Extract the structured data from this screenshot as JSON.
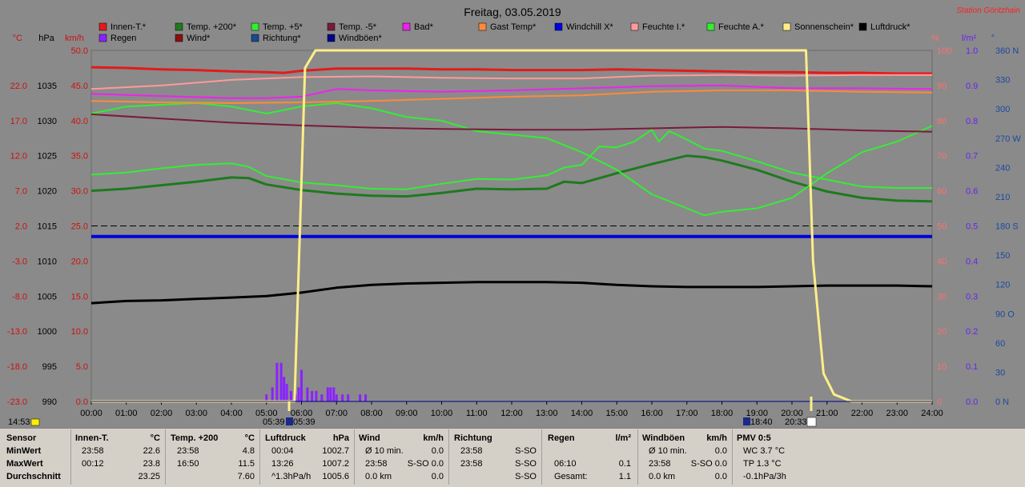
{
  "header": {
    "title": "Freitag, 03.05.2019",
    "station": "Station Göritzhain"
  },
  "legend": [
    {
      "label": "Innen-T.*",
      "color": "#e31a1a"
    },
    {
      "label": "Temp. +200*",
      "color": "#1e7a1e"
    },
    {
      "label": "Temp. +5*",
      "color": "#33ee33"
    },
    {
      "label": "Temp. -5*",
      "color": "#7a1a3a"
    },
    {
      "label": "Bad*",
      "color": "#ee22ee"
    },
    {
      "label": "Gast Temp*",
      "color": "#ff8a3a"
    },
    {
      "label": "Windchill X*",
      "color": "#0000dd"
    },
    {
      "label": "Feuchte I.*",
      "color": "#ff9a9a"
    },
    {
      "label": "Feuchte A.*",
      "color": "#33ee33"
    },
    {
      "label": "Sonnenschein*",
      "color": "#ffee88"
    },
    {
      "label": "Luftdruck*",
      "color": "#000000"
    },
    {
      "label": "Regen",
      "color": "#8a22ff"
    },
    {
      "label": "Wind*",
      "color": "#8a1010"
    },
    {
      "label": "Richtung*",
      "color": "#1a4a8a"
    },
    {
      "label": "Windböen*",
      "color": "#000088"
    }
  ],
  "axes": {
    "unit_c": "°C",
    "unit_hpa": "hPa",
    "unit_kmh": "km/h",
    "unit_pct": "%",
    "unit_lm2": "l/m²",
    "unit_deg": "°",
    "c_ticks": [
      "22.0",
      "17.0",
      "12.0",
      "7.0",
      "2.0",
      "-3.0",
      "-8.0",
      "-13.0",
      "-18.0",
      "-23.0"
    ],
    "hpa_ticks": [
      "1035",
      "1030",
      "1025",
      "1020",
      "1015",
      "1010",
      "1005",
      "1000",
      "995",
      "990"
    ],
    "kmh_ticks": [
      "50.0",
      "45.0",
      "40.0",
      "35.0",
      "30.0",
      "25.0",
      "20.0",
      "15.0",
      "10.0",
      "5.0",
      "0.0"
    ],
    "pct_ticks": [
      "100",
      "90",
      "80",
      "70",
      "60",
      "50",
      "40",
      "30",
      "20",
      "10",
      "0"
    ],
    "lm2_ticks": [
      "1.0",
      "0.9",
      "0.8",
      "0.7",
      "0.6",
      "0.5",
      "0.4",
      "0.3",
      "0.2",
      "0.1",
      "0.0"
    ],
    "deg_ticks": [
      "360 N",
      "330",
      "300",
      "270 W",
      "240",
      "210",
      "180 S",
      "150",
      "120",
      "90 O",
      "60",
      "30",
      "0 N"
    ],
    "x_ticks": [
      "00:00",
      "01:00",
      "02:00",
      "03:00",
      "04:00",
      "05:00",
      "06:00",
      "07:00",
      "08:00",
      "09:00",
      "10:00",
      "11:00",
      "12:00",
      "13:00",
      "14:00",
      "15:00",
      "16:00",
      "17:00",
      "18:00",
      "19:00",
      "20:00",
      "21:00",
      "22:00",
      "23:00",
      "24:00"
    ]
  },
  "markers": {
    "time_now": "14:53",
    "sunrise": "05:39",
    "sunrise2": "05:39",
    "moonrise": "18:40",
    "sunset": "20:33"
  },
  "chart_data": {
    "type": "line",
    "title": "Freitag, 03.05.2019",
    "x_unit": "hour",
    "xlim": [
      0,
      24
    ],
    "ylim_kmh": [
      0,
      50
    ],
    "series": [
      {
        "name": "Innen-T.*",
        "color": "#e31a1a",
        "width": 3,
        "x": [
          0,
          1,
          2,
          3,
          4,
          5,
          5.5,
          6,
          7,
          8,
          9,
          10,
          11,
          12,
          13,
          14,
          15,
          16,
          17,
          18,
          19,
          20,
          21,
          22,
          23,
          24
        ],
        "y": [
          47.6,
          47.5,
          47.3,
          47.2,
          47.0,
          46.9,
          46.8,
          47.1,
          47.4,
          47.4,
          47.4,
          47.3,
          47.3,
          47.2,
          47.2,
          47.2,
          47.3,
          47.2,
          47.1,
          47.0,
          46.9,
          46.9,
          46.8,
          46.8,
          46.7,
          46.7
        ]
      },
      {
        "name": "Temp. +200*",
        "color": "#1e7a1e",
        "width": 3,
        "x": [
          0,
          1,
          2,
          3,
          4,
          4.5,
          5,
          6,
          7,
          8,
          9,
          10,
          11,
          12,
          13,
          13.5,
          14,
          15,
          16,
          17,
          17.5,
          18,
          19,
          20,
          21,
          22,
          23,
          24
        ],
        "y": [
          30.0,
          30.3,
          30.8,
          31.3,
          31.9,
          31.8,
          30.9,
          30.1,
          29.6,
          29.3,
          29.2,
          29.7,
          30.3,
          30.2,
          30.3,
          31.3,
          31.1,
          32.5,
          33.8,
          35.0,
          34.8,
          34.3,
          33.0,
          31.3,
          29.9,
          29.0,
          28.6,
          28.5
        ]
      },
      {
        "name": "Temp. +5*",
        "color": "#33ee33",
        "width": 2,
        "x": [
          0,
          1,
          2,
          3,
          4,
          4.5,
          5,
          6,
          7,
          8,
          9,
          10,
          11,
          12,
          13,
          13.5,
          14,
          14.5,
          15,
          15.5,
          16,
          16.2,
          16.5,
          17,
          17.5,
          18,
          19,
          20,
          21,
          22,
          23,
          24
        ],
        "y": [
          32.3,
          32.6,
          33.2,
          33.7,
          33.9,
          33.4,
          32.1,
          31.2,
          30.8,
          30.3,
          30.2,
          31.0,
          31.7,
          31.6,
          32.2,
          33.3,
          33.7,
          36.3,
          36.2,
          37.0,
          38.7,
          37.0,
          38.5,
          37.3,
          36.0,
          35.7,
          34.2,
          32.6,
          31.6,
          30.6,
          30.4,
          30.4
        ]
      },
      {
        "name": "Feuchte A.*",
        "color": "#33ee33",
        "width": 2,
        "x": [
          0,
          1,
          2,
          3,
          4,
          5,
          6,
          7,
          8,
          9,
          10,
          11,
          12,
          13,
          14,
          15,
          16,
          17,
          17.5,
          18,
          19,
          20,
          21,
          22,
          23,
          24
        ],
        "y": [
          82,
          84,
          84.5,
          85,
          84,
          82,
          84,
          85,
          83.5,
          81,
          80,
          77,
          76,
          75,
          71,
          66,
          59,
          55,
          53,
          54,
          55,
          58,
          65,
          71,
          74,
          78.5
        ]
      },
      {
        "name": "Temp. -5*",
        "color": "#7a1a3a",
        "width": 2,
        "x": [
          0,
          2,
          4,
          6,
          8,
          10,
          12,
          14,
          16,
          18,
          20,
          22,
          24
        ],
        "y": [
          40.9,
          40.3,
          39.7,
          39.3,
          39.0,
          38.8,
          38.7,
          38.7,
          38.9,
          39.1,
          38.9,
          38.6,
          38.4
        ]
      },
      {
        "name": "Bad*",
        "color": "#ee22ee",
        "width": 2,
        "x": [
          0,
          2,
          4,
          5,
          6,
          7,
          8,
          10,
          12,
          14,
          16,
          18,
          20,
          22,
          24
        ],
        "y": [
          43.8,
          43.5,
          43.2,
          43.2,
          43.4,
          44.5,
          44.3,
          44.1,
          44.3,
          44.6,
          44.9,
          45.0,
          44.6,
          44.6,
          44.5
        ]
      },
      {
        "name": "Gast Temp*",
        "color": "#ff8a3a",
        "width": 2,
        "x": [
          0,
          2,
          4,
          6,
          8,
          10,
          12,
          14,
          16,
          18,
          20,
          22,
          24
        ],
        "y": [
          42.8,
          42.6,
          42.5,
          42.6,
          42.8,
          43.1,
          43.4,
          43.6,
          44.1,
          44.3,
          44.3,
          44.1,
          44.0
        ]
      },
      {
        "name": "Windchill X*",
        "color": "#0000dd",
        "width": 4,
        "x": [
          0,
          24
        ],
        "y": [
          23.5,
          23.5
        ]
      },
      {
        "name": "Feuchte I.*",
        "color": "#ff9a9a",
        "width": 2,
        "x": [
          0,
          2,
          4,
          6,
          8,
          10,
          12,
          14,
          16,
          18,
          20,
          22,
          24
        ],
        "y": [
          44.5,
          45.0,
          45.8,
          46.2,
          46.3,
          46.1,
          46.0,
          46.0,
          46.4,
          46.5,
          46.4,
          46.5,
          46.5
        ]
      },
      {
        "name": "Luftdruck*",
        "color": "#000000",
        "width": 3,
        "x": [
          0,
          1,
          2,
          3,
          4,
          5,
          6,
          7,
          8,
          9,
          10,
          11,
          12,
          13,
          14,
          15,
          16,
          17,
          18,
          19,
          20,
          21,
          22,
          23,
          24
        ],
        "y": [
          1004.0,
          1004.3,
          1004.4,
          1004.6,
          1004.8,
          1005.0,
          1005.5,
          1006.2,
          1006.6,
          1006.8,
          1006.9,
          1007.0,
          1007.0,
          1007.0,
          1006.9,
          1006.6,
          1006.4,
          1006.3,
          1006.3,
          1006.3,
          1006.4,
          1006.5,
          1006.5,
          1006.5,
          1006.4
        ]
      },
      {
        "name": "Sonnenschein*",
        "color": "#ffee88",
        "width": 3,
        "x": [
          0,
          5.8,
          6.1,
          6.4,
          20.4,
          20.6,
          20.9,
          21.2,
          21.7,
          24
        ],
        "y": [
          0,
          0,
          95,
          100,
          100,
          40,
          8,
          2,
          0,
          0
        ]
      },
      {
        "name": "Wind*",
        "color": "#8a1010",
        "width": 1,
        "x": [
          0,
          24
        ],
        "y": [
          0,
          0
        ]
      },
      {
        "name": "Windböen*",
        "color": "#000088",
        "width": 1,
        "x": [
          0,
          24
        ],
        "y": [
          0,
          0
        ]
      }
    ],
    "reference_line": {
      "value_c": 0.0,
      "style": "dashed",
      "color": "#000000"
    },
    "rain_bars": {
      "name": "Regen",
      "color": "#8a22ff",
      "x": [
        5.0,
        5.17,
        5.3,
        5.42,
        5.5,
        5.58,
        5.7,
        5.83,
        5.92,
        6.0,
        6.17,
        6.3,
        6.42,
        6.58,
        6.75,
        6.83,
        6.92,
        7.0,
        7.17,
        7.33,
        7.67,
        7.83
      ],
      "y": [
        0.02,
        0.04,
        0.11,
        0.11,
        0.07,
        0.05,
        0.03,
        0.02,
        0.04,
        0.09,
        0.04,
        0.03,
        0.03,
        0.02,
        0.04,
        0.04,
        0.04,
        0.02,
        0.02,
        0.02,
        0.02,
        0.02
      ]
    }
  },
  "summary": {
    "columns": [
      {
        "header": "Sensor"
      },
      {
        "header": "Innen-T.",
        "unit": "°C"
      },
      {
        "header": "Temp. +200",
        "unit": "°C"
      },
      {
        "header": "Luftdruck",
        "unit": "hPa"
      },
      {
        "header": "Wind",
        "unit": "km/h"
      },
      {
        "header": "Richtung",
        "unit": ""
      },
      {
        "header": "Regen",
        "unit": "l/m²"
      },
      {
        "header": "Windböen",
        "unit": "km/h"
      },
      {
        "header": "PMV 0:5",
        "unit": ""
      }
    ],
    "rows": [
      {
        "label": "MinWert",
        "cells": [
          [
            "23:58",
            "22.6"
          ],
          [
            "23:58",
            "4.8"
          ],
          [
            "00:04",
            "1002.7"
          ],
          [
            "Ø 10 min.",
            "0.0"
          ],
          [
            "23:58",
            "S-SO"
          ],
          [
            "",
            ""
          ],
          [
            "Ø 10 min.",
            "0.0"
          ],
          [
            "WC 3.7 °C",
            ""
          ]
        ]
      },
      {
        "label": "MaxWert",
        "cells": [
          [
            "00:12",
            "23.8"
          ],
          [
            "16:50",
            "11.5"
          ],
          [
            "13:26",
            "1007.2"
          ],
          [
            "23:58",
            "S-SO 0.0"
          ],
          [
            "23:58",
            "S-SO"
          ],
          [
            "06:10",
            "0.1"
          ],
          [
            "23:58",
            "S-SO 0.0"
          ],
          [
            "TP 1.3 °C",
            ""
          ]
        ]
      },
      {
        "label": "Durchschnitt",
        "cells": [
          [
            "",
            "23.25"
          ],
          [
            "",
            "7.60"
          ],
          [
            "^1.3hPa/h",
            "1005.6"
          ],
          [
            "0.0 km",
            "0.0"
          ],
          [
            "",
            "S-SO"
          ],
          [
            "Gesamt:",
            "1.1"
          ],
          [
            "0.0 km",
            "0.0"
          ],
          [
            "-0.1hPa/3h",
            ""
          ]
        ]
      }
    ]
  }
}
